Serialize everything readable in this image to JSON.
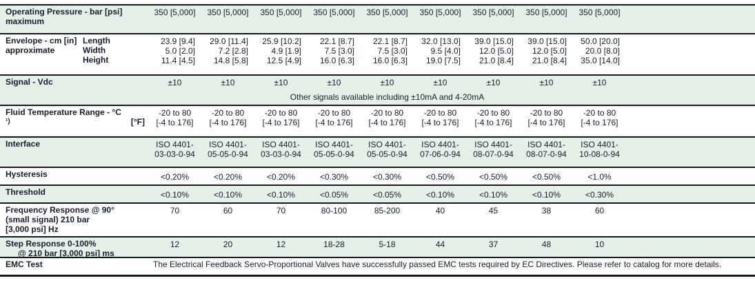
{
  "colors": {
    "shaded_row_bg": "#e5f0e9",
    "text": "#161e2b",
    "rule": "#14181c"
  },
  "rows": {
    "operating_pressure": {
      "label_line1": "Operating Pressure - bar [psi]",
      "label_line2": "maximum",
      "values": [
        "350 [5,000]",
        "350 [5,000]",
        "350 [5,000]",
        "350 [5,000]",
        "350 [5,000]",
        "350 [5,000]",
        "350 [5,000]",
        "350 [5,000]",
        "350 [5,000]"
      ]
    },
    "envelope": {
      "label_line1": "Envelope - cm [in]",
      "label_line2": "approximate",
      "sublabels": {
        "l": "Length",
        "w": "Width",
        "h": "Height"
      },
      "length": [
        "23.9 [9.4]",
        "29.0 [11.4]",
        "25.9 [10.2]",
        "22.1 [8.7]",
        "22.1 [8.7]",
        "32.0 [13.0]",
        "39.0 [15.0]",
        "39.0 [15.0]",
        "50.0 [20.0]"
      ],
      "width": [
        "5.0 [2.0]",
        "7.2 [2.8]",
        "4.9 [1.9]",
        "7.5 [3.0]",
        "7.5 [3.0]",
        "9.5 [4.0]",
        "12.0 [5.0]",
        "12.0 [5.0]",
        "20.0 [8.0]"
      ],
      "height": [
        "11.4 [4.5]",
        "14.8 [5.8]",
        "12.5 [4.9]",
        "16.0 [6.3]",
        "16.0 [6.3]",
        "19.0 [7.5]",
        "21.0 [8.4]",
        "21.0 [8.4]",
        "35.0 [14.0]"
      ]
    },
    "signal": {
      "label": "Signal - Vdc",
      "values": [
        "±10",
        "±10",
        "±10",
        "±10",
        "±10",
        "±10",
        "±10",
        "±10",
        "±10"
      ],
      "note": "Other signals available including ±10mA and 4-20mA"
    },
    "fluid_temp": {
      "label_line1": "Fluid Temperature Range - °C",
      "footnote_marker": "¹)",
      "label_unit2": "[°F]",
      "line1": [
        "-20 to 80",
        "-20 to 80",
        "-20 to 80",
        "-20 to 80",
        "-20 to 80",
        "-20 to 80",
        "-20 to 80",
        "-20 to 80",
        "-20 to 80"
      ],
      "line2": [
        "[-4 to 176]",
        "[-4 to 176]",
        "[-4 to 176]",
        "[-4 to 176]",
        "[-4 to 176]",
        "[-4 to 176]",
        "[-4 to 176]",
        "[-4 to 176]",
        "[-4 to 176]"
      ]
    },
    "interface": {
      "label": "Interface",
      "line1": [
        "ISO 4401-",
        "ISO 4401-",
        "ISO 4401-",
        "ISO 4401-",
        "ISO 4401-",
        "ISO 4401-",
        "ISO 4401-",
        "ISO 4401-",
        "ISO 4401-"
      ],
      "line2": [
        "03-03-0-94",
        "05-05-0-94",
        "03-03-0-94",
        "05-05-0-94",
        "05-05-0-94",
        "07-06-0-94",
        "08-07-0-94",
        "08-07-0-94",
        "10-08-0-94"
      ]
    },
    "hysteresis": {
      "label": "Hysteresis",
      "values": [
        "<0.20%",
        "<0.20%",
        "<0.20%",
        "<0.30%",
        "<0.30%",
        "<0.50%",
        "<0.50%",
        "<0.50%",
        "<1.0%"
      ]
    },
    "threshold": {
      "label": "Threshold",
      "values": [
        "<0.10%",
        "<0.10%",
        "<0.10%",
        "<0.05%",
        "<0.05%",
        "<0.10%",
        "<0.10%",
        "<0.10%",
        "<0.30%"
      ]
    },
    "frequency_response": {
      "label_line1": "Frequency Response @ 90°",
      "label_line2": "(small signal) 210 bar",
      "label_line3": "[3,000 psi] Hz",
      "values": [
        "70",
        "60",
        "70",
        "80-100",
        "85-200",
        "40",
        "45",
        "38",
        "60"
      ]
    },
    "step_response": {
      "label_line1": "Step Response 0-100%",
      "label_line2": "@ 210 bar [3,000 psi] ms",
      "values": [
        "12",
        "20",
        "12",
        "18-28",
        "5-18",
        "44",
        "37",
        "48",
        "10"
      ]
    },
    "emc_test": {
      "label": "EMC Test",
      "text": "The Electrical Feedback Servo-Proportional Valves have successfully passed EMC tests required by EC Directives. Please refer to catalog for more details."
    }
  }
}
